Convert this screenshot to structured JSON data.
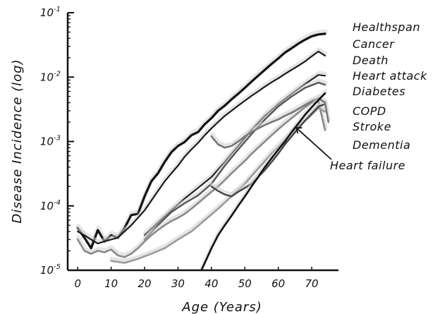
{
  "chart_data": {
    "type": "line",
    "xlabel": "Age (Years)",
    "ylabel": "Disease Incidence (log)",
    "xlim": [
      -3,
      78
    ],
    "ylim_log10": [
      -5,
      -1
    ],
    "y_scale": "log",
    "x_ticks": [
      0,
      10,
      20,
      30,
      40,
      50,
      60,
      70
    ],
    "y_ticks": [
      {
        "exp": -1,
        "label": "10-1"
      },
      {
        "exp": -2,
        "label": "10-2"
      },
      {
        "exp": -3,
        "label": "10-3"
      },
      {
        "exp": -4,
        "label": "10-4"
      },
      {
        "exp": -5,
        "label": "10-5"
      }
    ],
    "grid": false,
    "legend": "direct labels at line ends (right)",
    "annotation": {
      "text": "Heart failure",
      "arrow_target": [
        65,
        0.0018
      ]
    },
    "series": [
      {
        "name": "Healthspan",
        "color": "#111111",
        "width": 3.2,
        "x": [
          0,
          2,
          4,
          6,
          8,
          10,
          12,
          14,
          16,
          18,
          20,
          22,
          24,
          26,
          28,
          30,
          32,
          34,
          36,
          38,
          40,
          42,
          44,
          46,
          48,
          50,
          52,
          54,
          56,
          58,
          60,
          62,
          64,
          66,
          68,
          70,
          72,
          74
        ],
        "y": [
          4.5e-05,
          3.2e-05,
          2.2e-05,
          4.2e-05,
          2.8e-05,
          3.5e-05,
          3.2e-05,
          4.5e-05,
          7.2e-05,
          7.5e-05,
          0.00014,
          0.00024,
          0.00032,
          0.00048,
          0.00068,
          0.00085,
          0.00098,
          0.00125,
          0.0014,
          0.00185,
          0.0023,
          0.003,
          0.0036,
          0.0045,
          0.0055,
          0.0068,
          0.0085,
          0.0105,
          0.013,
          0.016,
          0.0195,
          0.024,
          0.028,
          0.033,
          0.038,
          0.043,
          0.046,
          0.047
        ]
      },
      {
        "name": "Cancer",
        "color": "#1a1a1a",
        "width": 2.2,
        "x": [
          0,
          2,
          4,
          6,
          8,
          10,
          12,
          14,
          16,
          18,
          20,
          22,
          24,
          26,
          28,
          30,
          32,
          34,
          36,
          38,
          40,
          42,
          44,
          46,
          48,
          50,
          52,
          54,
          56,
          58,
          60,
          62,
          64,
          66,
          68,
          70,
          72,
          74
        ],
        "y": [
          4e-05,
          3.5e-05,
          3e-05,
          2.6e-05,
          2.8e-05,
          3e-05,
          3.2e-05,
          4e-05,
          5e-05,
          6.5e-05,
          8.5e-05,
          0.00012,
          0.00017,
          0.00024,
          0.00032,
          0.00042,
          0.00058,
          0.00075,
          0.00095,
          0.00125,
          0.0016,
          0.002,
          0.0025,
          0.003,
          0.0036,
          0.0043,
          0.0051,
          0.006,
          0.0071,
          0.0083,
          0.0096,
          0.0112,
          0.013,
          0.015,
          0.0175,
          0.021,
          0.025,
          0.0215
        ]
      },
      {
        "name": "Death",
        "color": "#222222",
        "width": 2.2,
        "x": [
          20,
          24,
          28,
          32,
          36,
          40,
          44,
          48,
          52,
          56,
          60,
          64,
          68,
          72,
          74
        ],
        "y": [
          3.5e-05,
          5.5e-05,
          8.5e-05,
          0.00013,
          0.00019,
          0.00028,
          0.00048,
          0.00085,
          0.0015,
          0.0025,
          0.0038,
          0.0055,
          0.0078,
          0.0108,
          0.0105
        ]
      },
      {
        "name": "Heart attack",
        "color": "#555555",
        "width": 2.4,
        "x": [
          20,
          24,
          28,
          32,
          36,
          40,
          44,
          48,
          52,
          56,
          60,
          64,
          68,
          72,
          74
        ],
        "y": [
          3e-05,
          5e-05,
          8e-05,
          0.00011,
          0.000145,
          0.00022,
          0.00042,
          0.00075,
          0.0013,
          0.0022,
          0.0035,
          0.005,
          0.0068,
          0.0082,
          0.0076
        ]
      },
      {
        "name": "Diabetes",
        "color": "#8a8a8a",
        "width": 2.6,
        "x": [
          0,
          2,
          4,
          6,
          8,
          10,
          12,
          14,
          16,
          18,
          20,
          22,
          24,
          26,
          28,
          30,
          32,
          34,
          36,
          38,
          40,
          42,
          44,
          46,
          48,
          50,
          52,
          54,
          56,
          58,
          60,
          62,
          64,
          66,
          68,
          70,
          72,
          74
        ],
        "y": [
          3e-05,
          2e-05,
          1.8e-05,
          2e-05,
          1.9e-05,
          2.1e-05,
          1.7e-05,
          1.6e-05,
          1.8e-05,
          2.2e-05,
          2.8e-05,
          3.5e-05,
          4.2e-05,
          5e-05,
          5.8e-05,
          6.5e-05,
          7.5e-05,
          9e-05,
          0.00011,
          0.000135,
          0.000165,
          0.0002,
          0.00025,
          0.00032,
          0.0004,
          0.0005,
          0.00064,
          0.0008,
          0.001,
          0.00125,
          0.00155,
          0.0019,
          0.0023,
          0.0028,
          0.0034,
          0.004,
          0.0042,
          0.0015
        ]
      },
      {
        "name": "COPD",
        "color": "#9a9a9a",
        "width": 2.6,
        "x": [
          10,
          14,
          18,
          22,
          26,
          30,
          34,
          38,
          42,
          46,
          50,
          54,
          58,
          62,
          66,
          70,
          72,
          74
        ],
        "y": [
          1.4e-05,
          1.3e-05,
          1.5e-05,
          1.8e-05,
          2.2e-05,
          3e-05,
          4e-05,
          6e-05,
          9e-05,
          0.00014,
          0.00022,
          0.00038,
          0.00065,
          0.00105,
          0.0017,
          0.0026,
          0.0033,
          0.0029
        ]
      },
      {
        "name": "Stroke",
        "color": "#444444",
        "width": 2.4,
        "x": [
          40,
          42,
          44,
          46,
          48,
          50,
          52,
          54,
          56,
          58,
          60,
          62,
          64,
          66,
          68,
          70,
          72,
          74
        ],
        "y": [
          0.0002,
          0.00017,
          0.00015,
          0.00014,
          0.000165,
          0.00019,
          0.00022,
          0.00028,
          0.00036,
          0.00048,
          0.00065,
          0.0009,
          0.0012,
          0.0016,
          0.0021,
          0.0027,
          0.0035,
          0.0038
        ]
      },
      {
        "name": "Dementia",
        "color": "#777777",
        "width": 2.6,
        "x": [
          40,
          42,
          44,
          46,
          48,
          50,
          52,
          54,
          56,
          58,
          60,
          62,
          64,
          66,
          68,
          70,
          72,
          74,
          75
        ],
        "y": [
          0.0012,
          0.0009,
          0.0008,
          0.00085,
          0.001,
          0.0012,
          0.0014,
          0.0016,
          0.0018,
          0.002,
          0.0022,
          0.0025,
          0.0028,
          0.0032,
          0.0037,
          0.0042,
          0.0047,
          0.004,
          0.002
        ]
      },
      {
        "name": "Heart failure",
        "color": "#111111",
        "width": 2.6,
        "x": [
          37,
          38,
          40,
          42,
          44,
          46,
          48,
          50,
          52,
          54,
          56,
          58,
          60,
          62,
          64,
          66,
          68,
          70,
          72,
          74
        ],
        "y": [
          1e-05,
          1.3e-05,
          2.2e-05,
          3.5e-05,
          5e-05,
          7e-05,
          0.0001,
          0.00014,
          0.0002,
          0.00028,
          0.0004,
          0.00055,
          0.00075,
          0.001,
          0.0014,
          0.0019,
          0.0026,
          0.0034,
          0.0044,
          0.0056
        ]
      }
    ]
  }
}
